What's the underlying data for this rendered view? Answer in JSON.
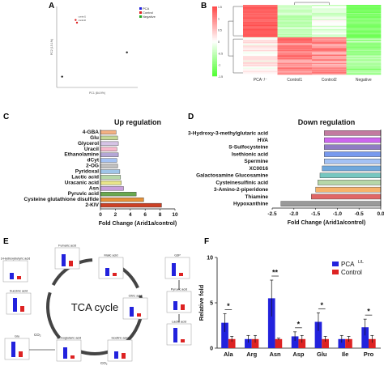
{
  "panels": {
    "a": "A",
    "b": "B",
    "c": "C",
    "d": "D",
    "e": "E",
    "f": "F"
  },
  "colors": {
    "blue": "#2222dd",
    "red": "#dd2222",
    "green": "#22aa22",
    "grey": "#888888"
  },
  "chart_data": [
    {
      "id": "A",
      "type": "scatter",
      "xlabel": "PC1 (84.9%)",
      "ylabel": "PC2 (15.1%)",
      "xlim": [
        -15,
        15
      ],
      "ylim": [
        -10,
        20
      ],
      "legend": [
        "PCA",
        "Control",
        "Negative"
      ],
      "legend_placement": "top-right",
      "inset_labels": [
        "control1",
        "control2"
      ],
      "points": [
        {
          "x": -13,
          "y": -6,
          "group": "Negative"
        },
        {
          "x": -8,
          "y": 15,
          "group": "Control"
        },
        {
          "x": -7.5,
          "y": 14,
          "group": "Control"
        },
        {
          "x": 11,
          "y": 3,
          "group": "PCA"
        }
      ]
    },
    {
      "id": "B",
      "type": "heatmap",
      "columns": [
        "PCA⁻/⁻",
        "Control1",
        "Control2",
        "Negative"
      ],
      "color_scale": [
        -1.5,
        1.5
      ],
      "color_ticks": [
        "1.5",
        "1",
        "0.5",
        "0",
        "-0.5",
        "-1",
        "-1.5"
      ]
    },
    {
      "id": "C",
      "type": "bar",
      "orientation": "horizontal",
      "title": "Up regulation",
      "xlabel": "Fold Change (Arid1a/control)",
      "xlim": [
        0,
        10
      ],
      "xticks": [
        "0",
        "2",
        "4",
        "6",
        "8",
        "10"
      ],
      "categories": [
        "4-GBA",
        "Glu",
        "Glycerol",
        "Uracil",
        "Ethanolamine",
        "dCyt",
        "2-OG",
        "Pyridoxal",
        "Lactic acid",
        "Uracanic acid",
        "Asn",
        "Pyruvic acid",
        "Cysteine glutathione disulfide",
        "2-KIV"
      ],
      "values": [
        2.1,
        2.3,
        2.4,
        2.2,
        2.4,
        2.2,
        2.3,
        2.6,
        2.7,
        2.8,
        3.1,
        4.8,
        5.8,
        8.2
      ],
      "bar_colors": [
        "#f4b183",
        "#c5d896",
        "#d6c4e6",
        "#f7b8cc",
        "#b4a7d6",
        "#a4c2f4",
        "#c0c0c0",
        "#9fc5e8",
        "#b6d7a8",
        "#e8e48a",
        "#c9a0dc",
        "#6aa84f",
        "#e69138",
        "#cc4125"
      ]
    },
    {
      "id": "D",
      "type": "bar",
      "orientation": "horizontal",
      "title": "Down regulation",
      "xlabel": "Fold Change (Arid1a/control)",
      "xlim": [
        -2.5,
        0
      ],
      "xticks": [
        "-2.5",
        "-2.0",
        "-1.5",
        "-1.0",
        "-0.5",
        "0.0"
      ],
      "categories": [
        "3-Hydroxy-3-methylglutaric acid",
        "HVA",
        "S-Sulfocysteine",
        "Isethionic acid",
        "Spermine",
        "XC0016",
        "Galactosamine Glucosamine",
        "Cysteinesulfinic acid",
        "3-Amino-2-piperidone",
        "Thiamine",
        "Hypoxanthine"
      ],
      "values": [
        -1.3,
        -1.3,
        -1.3,
        -1.3,
        -1.3,
        -1.35,
        -1.4,
        -1.45,
        -1.5,
        -1.6,
        -2.3
      ],
      "bar_colors": [
        "#c27ba0",
        "#cc66ee",
        "#8e7cc3",
        "#7799ee",
        "#a4c2f4",
        "#6fa8dc",
        "#76c7c0",
        "#b6d7a8",
        "#f6b26b",
        "#e06666",
        "#999999"
      ]
    },
    {
      "id": "E",
      "type": "diagram",
      "center_label": "TCA cycle",
      "nodes": [
        "3-Hydroxybutyric acid",
        "Fumaric acid",
        "Malic acid",
        "Succinic acid",
        "Citric acid",
        "Glu",
        "2-Oxoglutaric acid",
        "Isocitric acid",
        "G3P",
        "Pyruvic acid",
        "Lactic acid"
      ],
      "edge_labels": [
        "CO₂",
        "CO₂"
      ]
    },
    {
      "id": "F",
      "type": "bar",
      "ylabel": "Relative fold",
      "ylim": [
        0,
        10
      ],
      "yticks": [
        "0",
        "5",
        "10"
      ],
      "categories": [
        "Ala",
        "Arg",
        "Asn",
        "Asp",
        "Glu",
        "Ile",
        "Pro"
      ],
      "series": [
        {
          "name": "PCA",
          "superscript": "L/L",
          "values": [
            2.8,
            1.0,
            5.5,
            1.3,
            2.9,
            1.0,
            2.3
          ]
        },
        {
          "name": "Control",
          "values": [
            1.0,
            1.0,
            1.0,
            1.0,
            1.0,
            1.0,
            1.0
          ]
        }
      ],
      "errors": [
        [
          1.0,
          0.3
        ],
        [
          0.4,
          0.4
        ],
        [
          2.0,
          0.1
        ],
        [
          0.5,
          0.4
        ],
        [
          1.0,
          0.3
        ],
        [
          0.4,
          0.3
        ],
        [
          0.9,
          0.4
        ]
      ],
      "significance": [
        "*",
        "",
        "**",
        "*",
        "*",
        "",
        "*"
      ],
      "legend_placement": "top-right"
    }
  ]
}
